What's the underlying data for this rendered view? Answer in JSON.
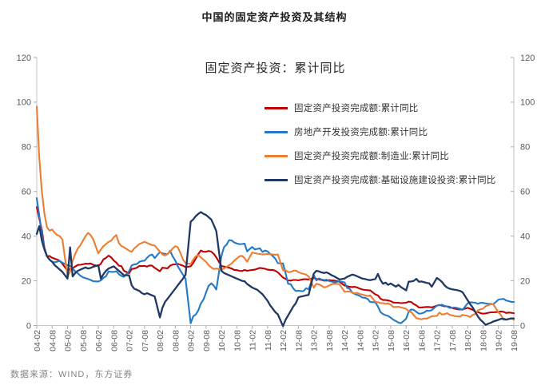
{
  "page_title": "中国的固定资产投资及其结构",
  "footer": {
    "source": "数据来源：WIND，东方证券"
  },
  "axis_style": {
    "axis_color": "#c6c6c6",
    "tick_color": "#a9a9a9",
    "label_color": "#595959"
  },
  "chart_data": {
    "type": "line",
    "title": "中国的固定资产投资及其结构",
    "subtitle": "固定资产投资：累计同比",
    "x_unit": "月度(YY-MM)，每年2-12月（无1月），2004-02至2019-08",
    "x_tick_labels": [
      "04-02",
      "04-08",
      "05-02",
      "05-08",
      "06-02",
      "06-08",
      "07-02",
      "07-08",
      "08-02",
      "08-08",
      "09-02",
      "09-08",
      "10-02",
      "10-08",
      "11-02",
      "11-08",
      "12-02",
      "12-08",
      "13-02",
      "13-08",
      "14-02",
      "14-08",
      "15-02",
      "15-08",
      "16-02",
      "16-08",
      "17-02",
      "17-08",
      "18-02",
      "18-08",
      "19-02",
      "19-08"
    ],
    "ylim": [
      0,
      120
    ],
    "y_ticks": [
      0,
      20,
      40,
      60,
      80,
      100,
      120
    ],
    "y_axis_right_mirror": true,
    "grid": false,
    "legend_position": "inside-top-center",
    "series": [
      {
        "name": "固定资产投资完成额:累计同比",
        "color": "#c00000",
        "values": [
          53.0,
          47.8,
          42.8,
          34.8,
          31.0,
          31.1,
          30.3,
          29.9,
          29.5,
          28.9,
          27.6,
          24.5,
          25.3,
          25.7,
          26.4,
          27.1,
          27.2,
          27.4,
          27.7,
          27.6,
          27.8,
          27.2,
          26.6,
          27.7,
          29.6,
          30.3,
          31.3,
          30.5,
          29.1,
          28.2,
          26.8,
          26.6,
          24.5,
          23.4,
          25.3,
          25.5,
          25.9,
          26.7,
          26.6,
          26.7,
          26.4,
          26.9,
          26.8,
          25.8,
          24.3,
          25.9,
          25.7,
          25.6,
          26.8,
          27.3,
          27.4,
          27.6,
          27.2,
          26.8,
          26.1,
          26.5,
          28.0,
          30.0,
          32.0,
          33.6,
          33.0,
          33.0,
          33.4,
          33.1,
          32.1,
          30.5,
          26.6,
          26.4,
          26.1,
          25.9,
          25.5,
          24.9,
          24.8,
          24.5,
          24.4,
          24.9,
          24.5,
          24.9,
          25.0,
          25.4,
          25.8,
          25.6,
          25.4,
          25.0,
          24.9,
          24.9,
          24.5,
          23.8,
          21.5,
          20.9,
          20.2,
          20.1,
          20.4,
          20.4,
          20.2,
          20.5,
          20.7,
          20.7,
          20.6,
          21.2,
          20.9,
          20.6,
          20.4,
          20.1,
          20.1,
          20.3,
          20.2,
          20.1,
          19.9,
          19.6,
          17.9,
          17.6,
          17.3,
          17.2,
          17.3,
          17.0,
          16.5,
          16.1,
          15.9,
          15.8,
          15.7,
          13.9,
          13.5,
          12.0,
          11.4,
          11.4,
          11.2,
          10.9,
          10.3,
          10.2,
          10.2,
          10.0,
          10.2,
          10.7,
          10.5,
          9.6,
          9.0,
          8.1,
          8.1,
          8.2,
          8.3,
          8.3,
          8.1,
          8.9,
          9.2,
          8.9,
          8.6,
          8.6,
          8.3,
          7.8,
          7.5,
          7.3,
          7.2,
          7.2,
          7.9,
          7.5,
          7.0,
          6.1,
          6.0,
          5.5,
          5.3,
          5.4,
          5.7,
          5.9,
          5.9,
          6.1,
          6.3,
          6.1,
          5.6,
          5.8,
          5.7,
          5.5
        ]
      },
      {
        "name": "房地产开发投资完成额:累计同比",
        "color": "#2479c6",
        "values": [
          57.0,
          49.0,
          41.0,
          34.5,
          31.0,
          29.5,
          28.5,
          28.3,
          28.6,
          28.9,
          28.1,
          27.0,
          26.7,
          25.6,
          24.2,
          23.4,
          22.3,
          21.6,
          21.2,
          20.8,
          20.4,
          19.8,
          19.7,
          20.2,
          21.3,
          22.1,
          24.2,
          24.0,
          24.0,
          24.3,
          23.0,
          22.2,
          21.8,
          24.3,
          26.9,
          27.4,
          27.5,
          28.5,
          28.9,
          29.0,
          30.3,
          31.4,
          31.8,
          30.2,
          32.9,
          32.3,
          32.1,
          31.9,
          33.5,
          30.9,
          29.1,
          26.5,
          24.6,
          22.7,
          20.9,
          1.0,
          4.1,
          4.9,
          6.8,
          9.9,
          11.6,
          14.7,
          17.7,
          18.9,
          17.8,
          16.1,
          31.1,
          35.1,
          36.2,
          38.2,
          38.1,
          37.2,
          36.7,
          36.4,
          36.5,
          36.7,
          33.2,
          35.2,
          34.1,
          34.3,
          34.6,
          32.9,
          33.6,
          33.2,
          32.0,
          31.1,
          29.9,
          27.9,
          27.8,
          23.5,
          18.7,
          18.5,
          16.6,
          15.4,
          15.6,
          15.4,
          15.4,
          16.7,
          16.2,
          22.8,
          20.2,
          21.1,
          20.6,
          20.3,
          20.5,
          19.9,
          19.7,
          19.2,
          19.5,
          19.8,
          19.3,
          16.8,
          16.4,
          14.7,
          14.1,
          13.7,
          13.2,
          12.5,
          12.4,
          11.9,
          10.5,
          10.4,
          8.5,
          6.0,
          5.1,
          4.6,
          4.3,
          3.5,
          2.6,
          2.0,
          1.3,
          1.0,
          3.0,
          6.2,
          7.2,
          7.0,
          6.1,
          5.3,
          5.4,
          5.8,
          6.6,
          6.5,
          6.9,
          8.9,
          9.1,
          9.3,
          8.8,
          8.5,
          7.9,
          7.9,
          8.1,
          7.8,
          7.5,
          7.0,
          9.9,
          10.4,
          10.3,
          10.2,
          9.7,
          10.2,
          10.1,
          9.9,
          9.7,
          9.7,
          9.5,
          11.6,
          11.8,
          11.9,
          11.2,
          10.9,
          10.6,
          10.5
        ]
      },
      {
        "name": "固定资产投资完成额:制造业:累计同比",
        "color": "#ed7d31",
        "values": [
          98.0,
          75.0,
          60.0,
          50.0,
          44.0,
          42.5,
          43.0,
          41.5,
          40.5,
          40.0,
          38.5,
          22.0,
          24.0,
          29.0,
          32.0,
          34.5,
          36.0,
          38.0,
          40.0,
          41.5,
          40.5,
          38.6,
          32.3,
          34.0,
          35.5,
          36.5,
          37.5,
          38.0,
          39.5,
          40.5,
          37.0,
          35.5,
          35.0,
          33.5,
          33.0,
          34.5,
          35.5,
          36.5,
          37.0,
          37.5,
          37.0,
          36.5,
          36.0,
          35.8,
          33.0,
          31.8,
          31.4,
          32.0,
          33.0,
          34.5,
          35.5,
          35.0,
          32.5,
          29.5,
          28.0,
          27.5,
          29.5,
          31.0,
          31.5,
          30.5,
          29.5,
          28.5,
          27.0,
          26.0,
          25.3,
          25.5,
          25.0,
          25.5,
          26.2,
          27.0,
          27.8,
          29.0,
          30.0,
          31.0,
          31.2,
          30.2,
          28.5,
          32.7,
          32.4,
          32.2,
          32.0,
          31.8,
          31.9,
          32.0,
          31.9,
          31.8,
          31.7,
          31.8,
          24.7,
          24.8,
          23.9,
          24.0,
          24.5,
          24.6,
          23.9,
          23.4,
          23.1,
          22.8,
          22.0,
          17.0,
          18.7,
          18.4,
          17.8,
          17.1,
          17.3,
          17.9,
          18.5,
          18.6,
          18.6,
          18.5,
          15.1,
          15.2,
          15.2,
          14.8,
          14.4,
          14.6,
          14.1,
          13.8,
          13.5,
          13.2,
          13.5,
          10.6,
          10.4,
          10.0,
          10.0,
          9.7,
          9.9,
          9.3,
          8.3,
          8.3,
          8.4,
          8.1,
          7.5,
          6.4,
          6.0,
          4.6,
          3.3,
          3.0,
          2.8,
          3.1,
          3.1,
          3.6,
          4.2,
          4.3,
          5.8,
          4.9,
          5.1,
          5.5,
          4.8,
          4.5,
          4.2,
          4.1,
          4.0,
          4.8,
          4.3,
          3.8,
          4.8,
          5.2,
          6.8,
          7.3,
          7.5,
          8.7,
          9.1,
          9.5,
          9.5,
          5.9,
          4.6,
          2.5,
          2.7,
          3.0,
          3.3,
          2.6
        ]
      },
      {
        "name": "固定资产投资完成额:基础设施建设投资:累计同比",
        "color": "#1f3864",
        "values": [
          41.0,
          44.5,
          38.0,
          34.0,
          31.0,
          29.5,
          28.5,
          27.0,
          26.0,
          25.0,
          24.0,
          21.0,
          35.0,
          22.0,
          23.5,
          24.5,
          25.0,
          25.5,
          26.0,
          25.5,
          25.8,
          26.3,
          27.0,
          21.0,
          23.0,
          24.5,
          25.5,
          26.0,
          26.5,
          25.5,
          24.5,
          23.5,
          22.5,
          22.5,
          18.0,
          16.5,
          16.0,
          15.5,
          14.5,
          14.0,
          14.5,
          14.0,
          13.5,
          13.0,
          3.6,
          8.0,
          10.5,
          12.0,
          13.5,
          15.0,
          16.5,
          18.0,
          19.5,
          21.0,
          22.7,
          46.5,
          47.5,
          49.0,
          50.0,
          50.8,
          50.0,
          49.5,
          48.5,
          47.5,
          45.0,
          42.2,
          24.5,
          23.5,
          23.0,
          22.5,
          22.0,
          21.5,
          21.0,
          20.5,
          20.0,
          19.8,
          18.6,
          17.0,
          16.5,
          16.0,
          15.0,
          14.0,
          12.5,
          11.0,
          9.0,
          7.5,
          6.0,
          5.0,
          -0.3,
          2.5,
          4.5,
          6.5,
          8.5,
          10.0,
          12.6,
          13.0,
          13.2,
          13.5,
          13.7,
          23.2,
          24.5,
          24.2,
          23.8,
          23.5,
          23.8,
          23.2,
          22.5,
          22.0,
          21.3,
          20.6,
          21.0,
          21.8,
          22.3,
          22.8,
          22.5,
          22.0,
          21.5,
          21.0,
          20.8,
          20.5,
          20.3,
          20.8,
          23.1,
          20.4,
          18.7,
          19.2,
          18.2,
          18.8,
          18.1,
          17.4,
          18.2,
          17.2,
          15.7,
          19.6,
          19.7,
          20.0,
          20.9,
          19.6,
          19.7,
          19.4,
          19.1,
          18.9,
          17.4,
          21.3,
          20.5,
          19.5,
          18.0,
          17.0,
          16.5,
          16.2,
          16.0,
          15.8,
          15.5,
          14.9,
          11.3,
          9.5,
          8.0,
          6.0,
          4.0,
          2.5,
          1.5,
          0.3,
          0.8,
          1.2,
          1.8,
          2.5,
          3.0,
          3.0,
          2.6,
          2.9,
          3.1,
          3.2
        ]
      }
    ]
  }
}
